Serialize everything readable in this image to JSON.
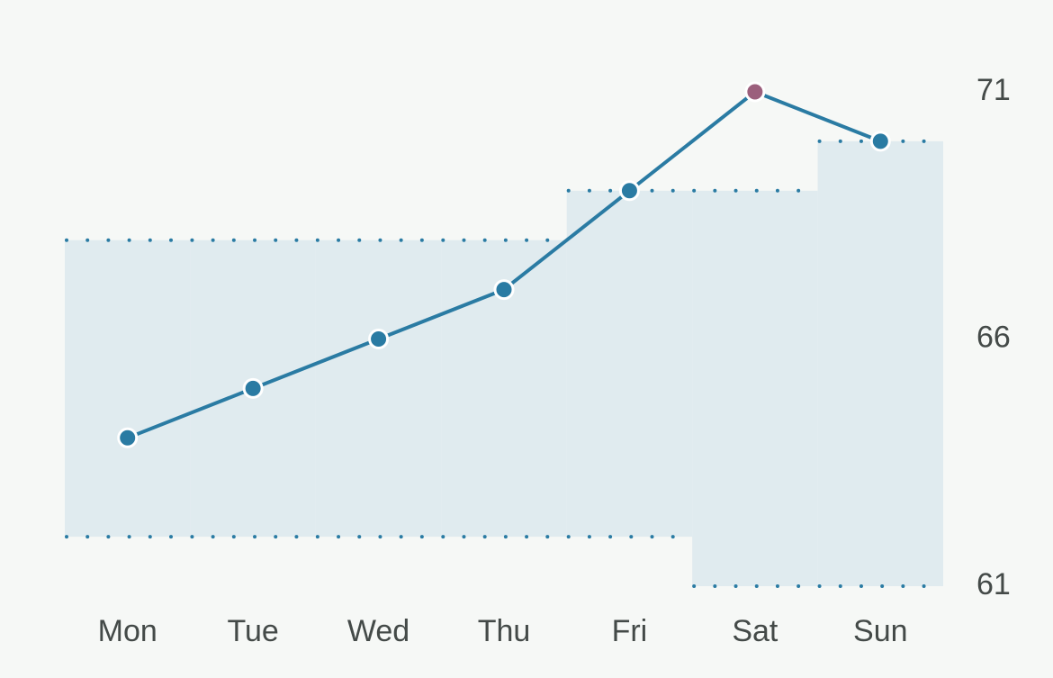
{
  "chart_data": {
    "type": "line",
    "categories": [
      "Mon",
      "Tue",
      "Wed",
      "Thu",
      "Fri",
      "Sat",
      "Sun"
    ],
    "values": [
      64,
      65,
      66,
      67,
      69,
      71,
      70
    ],
    "color": "#2a7ba3",
    "point_colors": [
      "#2a7ba3",
      "#2a7ba3",
      "#2a7ba3",
      "#2a7ba3",
      "#2a7ba3",
      "#9b5f7c",
      "#2a7ba3"
    ],
    "band": {
      "low": [
        62,
        62,
        62,
        62,
        62,
        61,
        61
      ],
      "high": [
        68,
        68,
        68,
        68,
        69,
        69,
        70
      ],
      "color": "#e0ebef",
      "edge_color": "#2a7ba3"
    },
    "ylim": [
      61,
      71
    ],
    "yticks": [
      61,
      66,
      71
    ],
    "grid": false
  }
}
